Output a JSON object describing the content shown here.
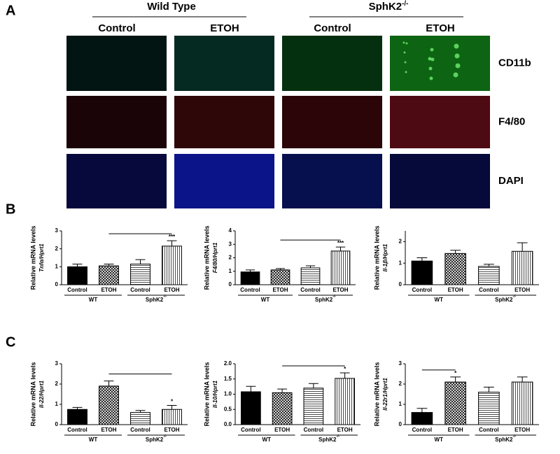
{
  "panel_a": {
    "label": "A",
    "groups": [
      {
        "name": "Wild Type"
      },
      {
        "name": "SphK2",
        "sup": "-/-"
      }
    ],
    "columns": [
      "Control",
      "ETOH",
      "Control",
      "ETOH"
    ],
    "rows": [
      "CD11b",
      "F4/80",
      "DAPI"
    ]
  },
  "panel_b": {
    "label": "B"
  },
  "panel_c": {
    "label": "C"
  },
  "chart_data": [
    {
      "type": "bar",
      "ylabel": "Relative mRNA levels",
      "ylabel2": "Tnfα/Hprt1",
      "categories": [
        "Control",
        "ETOH",
        "Control",
        "ETOH"
      ],
      "groups": [
        {
          "name": "WT"
        },
        {
          "name": "SphK2",
          "sup": "-/-"
        }
      ],
      "values": [
        1.0,
        1.05,
        1.15,
        2.15
      ],
      "errors": [
        0.15,
        0.1,
        0.25,
        0.3
      ],
      "fills": [
        "solid",
        "crosshatch",
        "horizontal",
        "vertical"
      ],
      "ylim": [
        0,
        3
      ],
      "yticks": [
        0,
        1,
        2,
        3
      ],
      "annotation": "***"
    },
    {
      "type": "bar",
      "ylabel": "Relative mRNA levels",
      "ylabel2": "F4/80/Hprt1",
      "categories": [
        "Control",
        "ETOH",
        "Control",
        "ETOH"
      ],
      "groups": [
        {
          "name": "WT"
        },
        {
          "name": "SphK2",
          "sup": "-/-"
        }
      ],
      "values": [
        0.95,
        1.1,
        1.25,
        2.5
      ],
      "errors": [
        0.15,
        0.1,
        0.15,
        0.3
      ],
      "fills": [
        "solid",
        "crosshatch",
        "horizontal",
        "vertical"
      ],
      "ylim": [
        0,
        4
      ],
      "yticks": [
        0,
        1,
        2,
        3,
        4
      ],
      "annotation": "***"
    },
    {
      "type": "bar",
      "ylabel": "Relative mRNA levels",
      "ylabel2": "Il-1β/Hprt1",
      "categories": [
        "Control",
        "ETOH",
        "Control",
        "ETOH"
      ],
      "groups": [
        {
          "name": "WT"
        },
        {
          "name": "SphK2",
          "sup": "-/-"
        }
      ],
      "values": [
        1.1,
        1.45,
        0.85,
        1.55
      ],
      "errors": [
        0.15,
        0.15,
        0.1,
        0.4
      ],
      "fills": [
        "solid",
        "crosshatch",
        "horizontal",
        "vertical"
      ],
      "ylim": [
        0,
        2.5
      ],
      "yticks": [
        0,
        1,
        2
      ]
    },
    {
      "type": "bar",
      "ylabel": "Relative mRNA levels",
      "ylabel2": "Il-22/Hprt1",
      "categories": [
        "Control",
        "ETOH",
        "Control",
        "ETOH"
      ],
      "groups": [
        {
          "name": "WT"
        },
        {
          "name": "SphK2",
          "sup": "-/-"
        }
      ],
      "values": [
        0.75,
        1.9,
        0.6,
        0.75
      ],
      "errors": [
        0.1,
        0.25,
        0.1,
        0.2
      ],
      "fills": [
        "solid",
        "crosshatch",
        "horizontal",
        "vertical"
      ],
      "ylim": [
        0,
        3
      ],
      "yticks": [
        0,
        1,
        2,
        3
      ],
      "annotation": "*"
    },
    {
      "type": "bar",
      "ylabel": "Relative mRNA levels",
      "ylabel2": "Il-10/Hprt1",
      "categories": [
        "Control",
        "ETOH",
        "Control",
        "ETOH"
      ],
      "groups": [
        {
          "name": "WT"
        },
        {
          "name": "SphK2",
          "sup": "-/-"
        }
      ],
      "values": [
        1.08,
        1.05,
        1.2,
        1.52
      ],
      "errors": [
        0.18,
        0.12,
        0.15,
        0.18
      ],
      "fills": [
        "solid",
        "crosshatch",
        "horizontal",
        "vertical"
      ],
      "ylim": [
        0,
        2
      ],
      "yticks": [
        {
          "value": 0,
          "label": "0.0"
        },
        {
          "value": 0.5,
          "label": "0.5"
        },
        {
          "value": 1,
          "label": "1.0"
        },
        {
          "value": 1.5,
          "label": "1.5"
        },
        {
          "value": 2,
          "label": "2.0"
        }
      ],
      "annotation": "*"
    },
    {
      "type": "bar",
      "ylabel": "Relative mRNA levels",
      "ylabel2": "Il-22r1/Hprt1",
      "categories": [
        "Control",
        "ETOH",
        "Control",
        "ETOH"
      ],
      "groups": [
        {
          "name": "WT"
        },
        {
          "name": "SphK2",
          "sup": "-/-"
        }
      ],
      "values": [
        0.6,
        2.1,
        1.6,
        2.1
      ],
      "errors": [
        0.2,
        0.25,
        0.25,
        0.25
      ],
      "fills": [
        "solid",
        "crosshatch",
        "horizontal",
        "vertical"
      ],
      "ylim": [
        0,
        3
      ],
      "yticks": [
        0,
        1,
        2,
        3
      ],
      "annotation": "*"
    }
  ]
}
